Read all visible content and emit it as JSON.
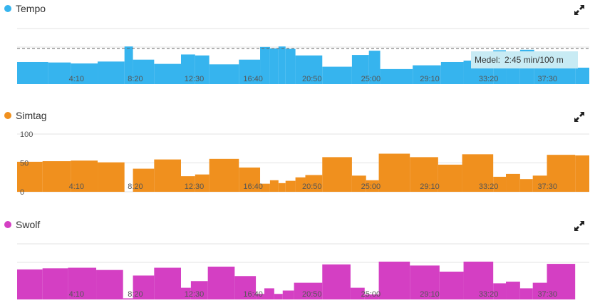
{
  "panels": [
    {
      "title": "Tempo",
      "color": "#36b4ee",
      "chart_data": {
        "type": "bar",
        "title": "Tempo",
        "inverted": true,
        "xlim": [
          0,
          40.5
        ],
        "x_ticks": [
          "4:10",
          "8:20",
          "12:30",
          "16:40",
          "20:50",
          "25:00",
          "29:10",
          "33:20",
          "37:30"
        ],
        "reference_line": {
          "label": "Medel:",
          "value": "2:45 min/100 m"
        },
        "bars": [
          {
            "start": 0.0,
            "end": 2.2,
            "value": 0.47
          },
          {
            "start": 2.2,
            "end": 3.8,
            "value": 0.46
          },
          {
            "start": 3.8,
            "end": 5.7,
            "value": 0.44
          },
          {
            "start": 5.7,
            "end": 7.6,
            "value": 0.48
          },
          {
            "start": 7.6,
            "end": 8.2,
            "value": 0.8
          },
          {
            "start": 8.2,
            "end": 9.7,
            "value": 0.52
          },
          {
            "start": 9.7,
            "end": 11.6,
            "value": 0.43
          },
          {
            "start": 11.6,
            "end": 12.6,
            "value": 0.63
          },
          {
            "start": 12.6,
            "end": 13.6,
            "value": 0.61
          },
          {
            "start": 13.6,
            "end": 15.7,
            "value": 0.42
          },
          {
            "start": 15.7,
            "end": 17.2,
            "value": 0.52
          },
          {
            "start": 17.2,
            "end": 17.9,
            "value": 0.79
          },
          {
            "start": 17.9,
            "end": 18.5,
            "value": 0.76
          },
          {
            "start": 18.5,
            "end": 19.0,
            "value": 0.8
          },
          {
            "start": 19.0,
            "end": 19.7,
            "value": 0.75
          },
          {
            "start": 19.7,
            "end": 21.6,
            "value": 0.61
          },
          {
            "start": 21.6,
            "end": 23.7,
            "value": 0.37
          },
          {
            "start": 23.7,
            "end": 24.9,
            "value": 0.62
          },
          {
            "start": 24.9,
            "end": 25.7,
            "value": 0.71
          },
          {
            "start": 25.7,
            "end": 28.0,
            "value": 0.32
          },
          {
            "start": 28.0,
            "end": 30.0,
            "value": 0.4
          },
          {
            "start": 30.0,
            "end": 31.6,
            "value": 0.47
          },
          {
            "start": 31.6,
            "end": 33.7,
            "value": 0.5
          },
          {
            "start": 33.7,
            "end": 34.6,
            "value": 0.72
          },
          {
            "start": 34.6,
            "end": 35.6,
            "value": 0.67
          },
          {
            "start": 35.6,
            "end": 36.6,
            "value": 0.73
          },
          {
            "start": 36.6,
            "end": 37.7,
            "value": 0.67
          },
          {
            "start": 37.7,
            "end": 39.5,
            "value": 0.41
          },
          {
            "start": 39.5,
            "end": 40.5,
            "value": 0.35
          }
        ]
      }
    },
    {
      "title": "Simtag",
      "color": "#f0901e",
      "chart_data": {
        "type": "bar",
        "title": "Simtag",
        "xlim": [
          0,
          40.5
        ],
        "ylim": [
          0,
          100
        ],
        "y_ticks": [
          "0",
          "50",
          "100"
        ],
        "x_ticks": [
          "4:10",
          "8:20",
          "12:30",
          "16:40",
          "20:50",
          "25:00",
          "29:10",
          "33:20",
          "37:30"
        ],
        "bars": [
          {
            "start": 0.0,
            "end": 1.8,
            "value": 52
          },
          {
            "start": 1.8,
            "end": 3.8,
            "value": 53
          },
          {
            "start": 3.8,
            "end": 5.7,
            "value": 54
          },
          {
            "start": 5.7,
            "end": 7.6,
            "value": 51
          },
          {
            "start": 7.6,
            "end": 8.2,
            "value": 0
          },
          {
            "start": 8.2,
            "end": 9.7,
            "value": 40
          },
          {
            "start": 9.7,
            "end": 11.6,
            "value": 56
          },
          {
            "start": 11.6,
            "end": 12.6,
            "value": 27
          },
          {
            "start": 12.6,
            "end": 13.6,
            "value": 30
          },
          {
            "start": 13.6,
            "end": 15.7,
            "value": 57
          },
          {
            "start": 15.7,
            "end": 17.2,
            "value": 42
          },
          {
            "start": 17.2,
            "end": 17.9,
            "value": 14
          },
          {
            "start": 17.9,
            "end": 18.5,
            "value": 20
          },
          {
            "start": 18.5,
            "end": 19.0,
            "value": 15
          },
          {
            "start": 19.0,
            "end": 19.7,
            "value": 19
          },
          {
            "start": 19.7,
            "end": 20.4,
            "value": 25
          },
          {
            "start": 20.4,
            "end": 21.6,
            "value": 29
          },
          {
            "start": 21.6,
            "end": 23.7,
            "value": 60
          },
          {
            "start": 23.7,
            "end": 24.7,
            "value": 28
          },
          {
            "start": 24.7,
            "end": 25.6,
            "value": 20
          },
          {
            "start": 25.6,
            "end": 27.8,
            "value": 66
          },
          {
            "start": 27.8,
            "end": 29.8,
            "value": 60
          },
          {
            "start": 29.8,
            "end": 31.5,
            "value": 47
          },
          {
            "start": 31.5,
            "end": 33.7,
            "value": 65
          },
          {
            "start": 33.7,
            "end": 34.6,
            "value": 26
          },
          {
            "start": 34.6,
            "end": 35.6,
            "value": 31
          },
          {
            "start": 35.6,
            "end": 36.5,
            "value": 22
          },
          {
            "start": 36.5,
            "end": 37.5,
            "value": 28
          },
          {
            "start": 37.5,
            "end": 39.5,
            "value": 64
          },
          {
            "start": 39.5,
            "end": 40.5,
            "value": 63
          }
        ]
      }
    },
    {
      "title": "Swolf",
      "color": "#d43fc3",
      "chart_data": {
        "type": "bar",
        "title": "Swolf",
        "xlim": [
          0,
          40.5
        ],
        "x_ticks": [
          "4:10",
          "8:20",
          "12:30",
          "16:40",
          "20:50",
          "25:00",
          "29:10",
          "33:20",
          "37:30"
        ],
        "bars": [
          {
            "start": 0.0,
            "end": 1.8,
            "value": 0.54
          },
          {
            "start": 1.8,
            "end": 3.6,
            "value": 0.56
          },
          {
            "start": 3.6,
            "end": 5.6,
            "value": 0.57
          },
          {
            "start": 5.6,
            "end": 7.5,
            "value": 0.53
          },
          {
            "start": 7.5,
            "end": 8.2,
            "value": 0.02
          },
          {
            "start": 8.2,
            "end": 9.7,
            "value": 0.43
          },
          {
            "start": 9.7,
            "end": 11.6,
            "value": 0.57
          },
          {
            "start": 11.6,
            "end": 12.3,
            "value": 0.21
          },
          {
            "start": 12.3,
            "end": 13.5,
            "value": 0.33
          },
          {
            "start": 13.5,
            "end": 15.4,
            "value": 0.59
          },
          {
            "start": 15.4,
            "end": 16.9,
            "value": 0.42
          },
          {
            "start": 16.9,
            "end": 17.5,
            "value": 0.1
          },
          {
            "start": 17.5,
            "end": 18.2,
            "value": 0.2
          },
          {
            "start": 18.2,
            "end": 18.8,
            "value": 0.1
          },
          {
            "start": 18.8,
            "end": 19.6,
            "value": 0.16
          },
          {
            "start": 19.6,
            "end": 21.6,
            "value": 0.3
          },
          {
            "start": 21.6,
            "end": 23.6,
            "value": 0.63
          },
          {
            "start": 23.6,
            "end": 24.6,
            "value": 0.21
          },
          {
            "start": 24.6,
            "end": 25.6,
            "value": 0.09
          },
          {
            "start": 25.6,
            "end": 27.8,
            "value": 0.68
          },
          {
            "start": 27.8,
            "end": 29.9,
            "value": 0.61
          },
          {
            "start": 29.9,
            "end": 31.6,
            "value": 0.5
          },
          {
            "start": 31.6,
            "end": 33.7,
            "value": 0.68
          },
          {
            "start": 33.7,
            "end": 34.6,
            "value": 0.29
          },
          {
            "start": 34.6,
            "end": 35.6,
            "value": 0.32
          },
          {
            "start": 35.6,
            "end": 36.5,
            "value": 0.2
          },
          {
            "start": 36.5,
            "end": 37.5,
            "value": 0.3
          },
          {
            "start": 37.5,
            "end": 39.5,
            "value": 0.64
          },
          {
            "start": 39.5,
            "end": 40.5,
            "value": 0.0
          }
        ]
      }
    }
  ]
}
